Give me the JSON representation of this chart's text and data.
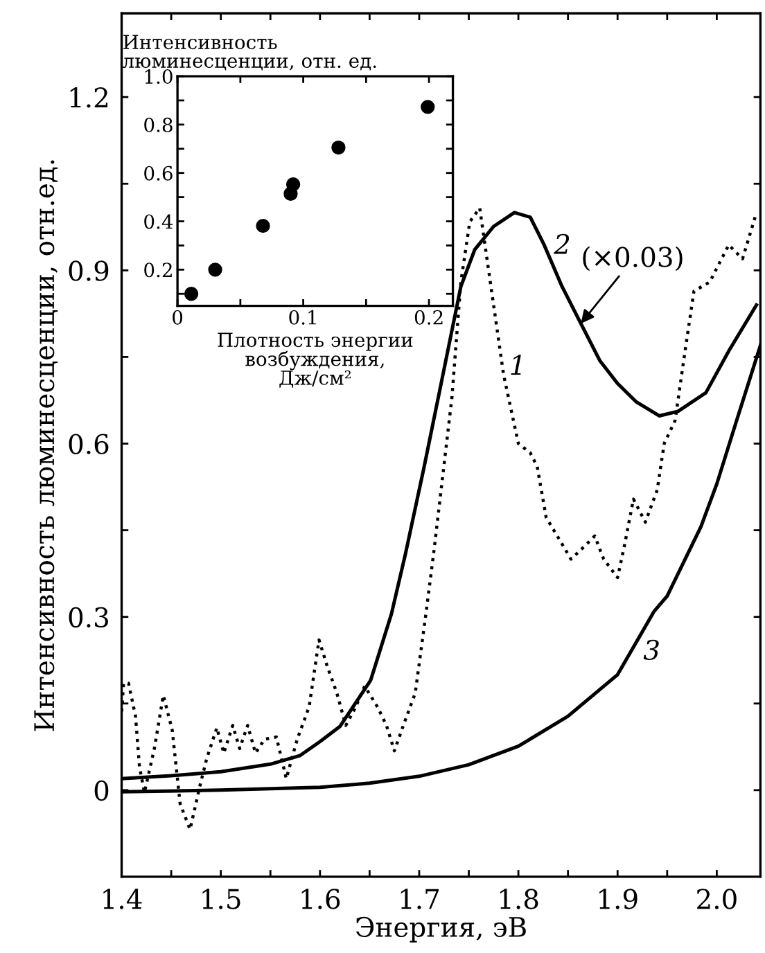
{
  "chart_data": [
    {
      "type": "line",
      "xlabel": "Энергия, эВ",
      "ylabel": "Интенсивность люминесценции, отн.ед.",
      "xlim": [
        1.4,
        2.044
      ],
      "ylim": [
        -0.15,
        1.345
      ],
      "xticks": [
        1.4,
        {
          "value": 1.45,
          "label": null
        },
        1.5,
        {
          "value": 1.55,
          "label": null
        },
        1.6,
        {
          "value": 1.65,
          "label": null
        },
        1.7,
        {
          "value": 1.75,
          "label": null
        },
        1.8,
        {
          "value": 1.85,
          "label": null
        },
        1.9,
        {
          "value": 1.95,
          "label": null
        },
        {
          "value": 2.0,
          "label": "2.0"
        }
      ],
      "yticks": [
        0,
        {
          "value": 0.15,
          "label": null
        },
        0.3,
        {
          "value": 0.45,
          "label": null
        },
        0.6,
        {
          "value": 0.75,
          "label": null
        },
        0.9,
        {
          "value": 1.05,
          "label": null
        },
        1.2
      ],
      "grid": false,
      "marker": "none",
      "series": [
        {
          "name": "1",
          "color": "#000000",
          "line_style": "dotted",
          "x": [
            1.4,
            1.402,
            1.407,
            1.414,
            1.418,
            1.423,
            1.433,
            1.442,
            1.451,
            1.459,
            1.469,
            1.479,
            1.486,
            1.496,
            1.503,
            1.512,
            1.519,
            1.527,
            1.535,
            1.544,
            1.556,
            1.566,
            1.577,
            1.589,
            1.599,
            1.607,
            1.617,
            1.626,
            1.636,
            1.645,
            1.658,
            1.667,
            1.675,
            1.684,
            1.696,
            1.707,
            1.715,
            1.733,
            1.742,
            1.751,
            1.761,
            1.765,
            1.775,
            1.785,
            1.793,
            1.8,
            1.812,
            1.819,
            1.828,
            1.842,
            1.853,
            1.863,
            1.877,
            1.886,
            1.9,
            1.907,
            1.916,
            1.928,
            1.94,
            1.947,
            1.958,
            1.968,
            1.977,
            1.993,
            2.012,
            2.026,
            2.04
          ],
          "values": [
            0.136,
            0.185,
            0.185,
            0.128,
            0.04,
            -0.004,
            0.072,
            0.164,
            0.104,
            -0.024,
            -0.068,
            0.008,
            0.056,
            0.108,
            0.064,
            0.112,
            0.072,
            0.112,
            0.064,
            0.088,
            0.092,
            0.02,
            0.088,
            0.144,
            0.26,
            0.216,
            0.168,
            0.112,
            0.144,
            0.18,
            0.144,
            0.112,
            0.068,
            0.112,
            0.168,
            0.308,
            0.416,
            0.68,
            0.88,
            0.984,
            1.008,
            0.96,
            0.84,
            0.72,
            0.656,
            0.6,
            0.584,
            0.56,
            0.472,
            0.432,
            0.4,
            0.416,
            0.44,
            0.4,
            0.368,
            0.424,
            0.504,
            0.464,
            0.52,
            0.6,
            0.64,
            0.76,
            0.864,
            0.88,
            0.944,
            0.92,
            1.0
          ]
        },
        {
          "name": "2",
          "color": "#000000",
          "line_style": "solid",
          "x": [
            1.4,
            1.45,
            1.5,
            1.55,
            1.58,
            1.6,
            1.62,
            1.651,
            1.672,
            1.686,
            1.705,
            1.724,
            1.742,
            1.756,
            1.775,
            1.796,
            1.812,
            1.826,
            1.844,
            1.863,
            1.882,
            1.9,
            1.919,
            1.942,
            1.961,
            1.989,
            2.012,
            2.04
          ],
          "values": [
            0.02,
            0.025,
            0.032,
            0.045,
            0.06,
            0.084,
            0.11,
            0.19,
            0.305,
            0.408,
            0.56,
            0.72,
            0.872,
            0.936,
            0.976,
            1.0,
            0.992,
            0.944,
            0.872,
            0.808,
            0.744,
            0.704,
            0.672,
            0.648,
            0.656,
            0.688,
            0.76,
            0.84
          ]
        },
        {
          "name": "3",
          "color": "#000000",
          "line_style": "solid",
          "x": [
            1.4,
            1.5,
            1.6,
            1.65,
            1.7,
            1.75,
            1.8,
            1.85,
            1.9,
            1.937,
            1.95,
            1.984,
            2.0,
            2.02,
            2.044
          ],
          "values": [
            -0.003,
            0.0,
            0.005,
            0.012,
            0.024,
            0.044,
            0.076,
            0.128,
            0.2,
            0.31,
            0.336,
            0.456,
            0.53,
            0.64,
            0.77
          ]
        }
      ],
      "annotations": [
        {
          "text": "(×0.03)",
          "x": 1.863,
          "y": 0.808
        }
      ]
    },
    {
      "type": "scatter",
      "xlabel": "Плотность энергии\nвозбуждения,\nДж/см²",
      "ylabel": "Интенсивность\nлюминесценции, отн. ед.",
      "xlim": [
        0,
        0.219
      ],
      "ylim": [
        0.05,
        1.0
      ],
      "xticks": [
        {
          "value": 0,
          "label": "0"
        },
        {
          "value": 0.05,
          "label": null
        },
        {
          "value": 0.1,
          "label": "0.1"
        },
        {
          "value": 0.15,
          "label": null
        },
        {
          "value": 0.2,
          "label": "0.2"
        }
      ],
      "yticks": [
        {
          "value": 0.1,
          "label": null
        },
        {
          "value": 0.2,
          "label": "0.2"
        },
        {
          "value": 0.3,
          "label": null
        },
        {
          "value": 0.4,
          "label": "0.4"
        },
        {
          "value": 0.5,
          "label": null
        },
        {
          "value": 0.6,
          "label": "0.6"
        },
        {
          "value": 0.7,
          "label": null
        },
        {
          "value": 0.8,
          "label": "0.8"
        },
        {
          "value": 0.9,
          "label": null
        },
        {
          "value": 1.0,
          "label": "1.0"
        }
      ],
      "grid": false,
      "marker": "circle",
      "series": [
        {
          "color": "#000000",
          "x": [
            0.011,
            0.03,
            0.068,
            0.09,
            0.092,
            0.128,
            0.199
          ],
          "values": [
            0.1,
            0.2,
            0.381,
            0.514,
            0.553,
            0.705,
            0.873
          ]
        }
      ]
    }
  ]
}
